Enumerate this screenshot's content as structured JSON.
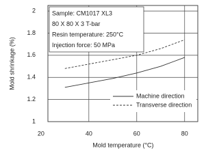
{
  "chart_data": {
    "type": "line",
    "xlabel": "Mold temperature (°C)",
    "ylabel": "Mold shrinkage (%)",
    "annotations": [
      "Sample: CM1017 XL3",
      "80 X 80 X 3 T-bar",
      "Resin temperature: 250°C",
      "Injection force: 50 MPa"
    ],
    "x": [
      30,
      40,
      50,
      60,
      70,
      80
    ],
    "series": [
      {
        "name": "Machine direction",
        "color": "#333333",
        "dash": false,
        "values": [
          1.31,
          1.35,
          1.39,
          1.44,
          1.5,
          1.58
        ]
      },
      {
        "name": "Transverse direction",
        "color": "#333333",
        "dash": true,
        "values": [
          1.48,
          1.52,
          1.56,
          1.6,
          1.66,
          1.74
        ]
      }
    ],
    "xlim": [
      22.9,
      85.5
    ],
    "xticks": [
      20,
      40,
      60,
      80
    ],
    "ylim": [
      1,
      2.05
    ],
    "yticks": [
      1,
      1.2,
      1.4,
      1.6,
      1.8,
      2
    ],
    "grid": true,
    "legend": "lower right"
  }
}
